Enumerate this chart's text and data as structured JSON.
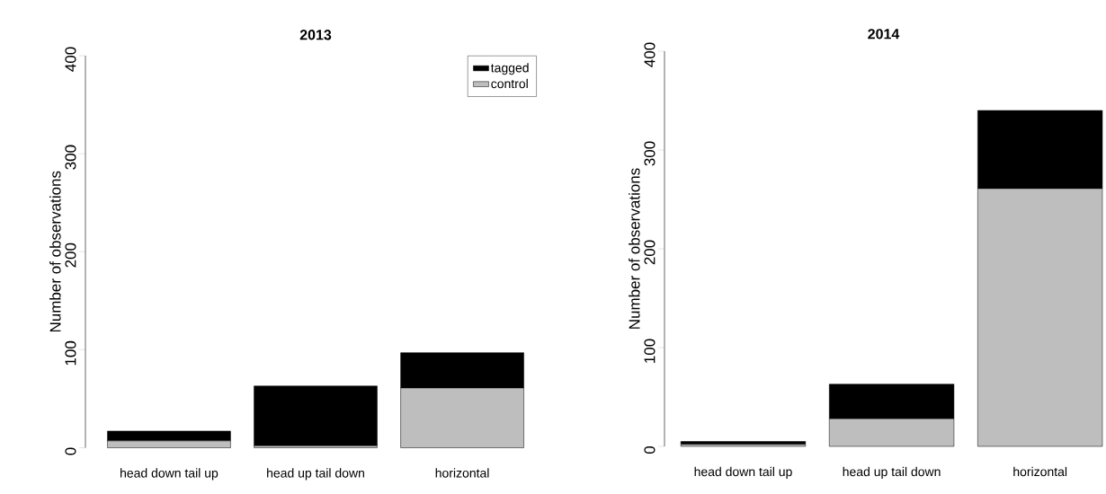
{
  "chart_data": [
    {
      "type": "bar",
      "title": "2013",
      "ylabel": "Number of observations",
      "categories": [
        "head down tail up",
        "head up tail down",
        "horizontal"
      ],
      "stacked": true,
      "ylim": [
        0,
        400
      ],
      "yticks": [
        0,
        100,
        200,
        300,
        400
      ],
      "legend": "top right",
      "series": [
        {
          "name": "control",
          "color": "#bebebe",
          "values": [
            7,
            2,
            61
          ]
        },
        {
          "name": "tagged",
          "color": "#000000",
          "values": [
            10,
            61,
            36
          ]
        }
      ]
    },
    {
      "type": "bar",
      "title": "2014",
      "ylabel": "Number of observations",
      "categories": [
        "head down tail up",
        "head up tail down",
        "horizontal"
      ],
      "stacked": true,
      "ylim": [
        0,
        400
      ],
      "yticks": [
        0,
        100,
        200,
        300,
        400
      ],
      "series": [
        {
          "color": "#bebebe",
          "values": [
            2,
            28,
            261
          ]
        },
        {
          "color": "#000000",
          "values": [
            3,
            35,
            79
          ]
        }
      ]
    }
  ]
}
